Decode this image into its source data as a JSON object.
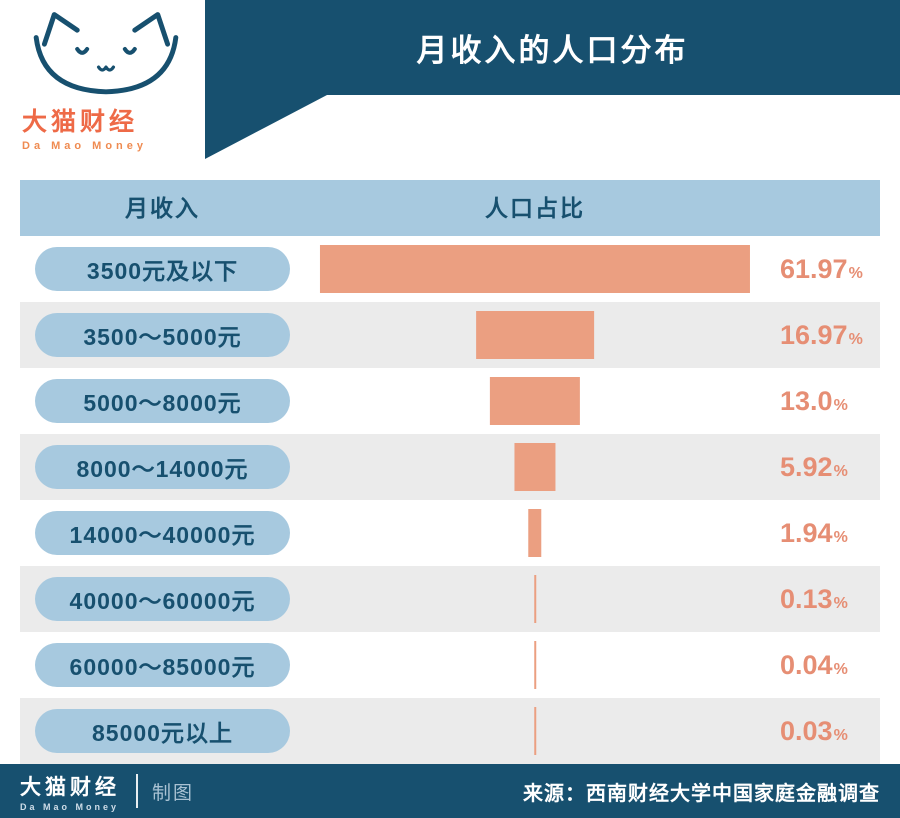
{
  "header": {
    "title": "月收入的人口分布",
    "logo": {
      "name": "大猫财经",
      "subtitle": "Da Mao Money"
    }
  },
  "table": {
    "columns": [
      "月收入",
      "人口占比"
    ]
  },
  "chart_data": {
    "type": "bar",
    "orientation": "horizontal",
    "title": "月收入的人口分布",
    "categories": [
      "3500元及以下",
      "3500～5000元",
      "5000～8000元",
      "8000～14000元",
      "14000～40000元",
      "40000～60000元",
      "60000～85000元",
      "85000元以上"
    ],
    "values": [
      61.97,
      16.97,
      13.0,
      5.92,
      1.94,
      0.13,
      0.04,
      0.03
    ],
    "value_labels": [
      "61.97",
      "16.97",
      "13.0",
      "5.92",
      "1.94",
      "0.13",
      "0.04",
      "0.03"
    ],
    "unit": "%",
    "xlabel": "人口占比",
    "ylabel": "月收入",
    "bar_color": "#eb9f81",
    "label_pill_color": "#a7c9df",
    "accent_navy": "#17506f",
    "source": "来源：西南财经大学中国家庭金融调查"
  },
  "footer": {
    "brand": "大猫财经",
    "brand_sub": "Da Mao Money",
    "credit": "制图",
    "source": "来源：西南财经大学中国家庭金融调查"
  }
}
